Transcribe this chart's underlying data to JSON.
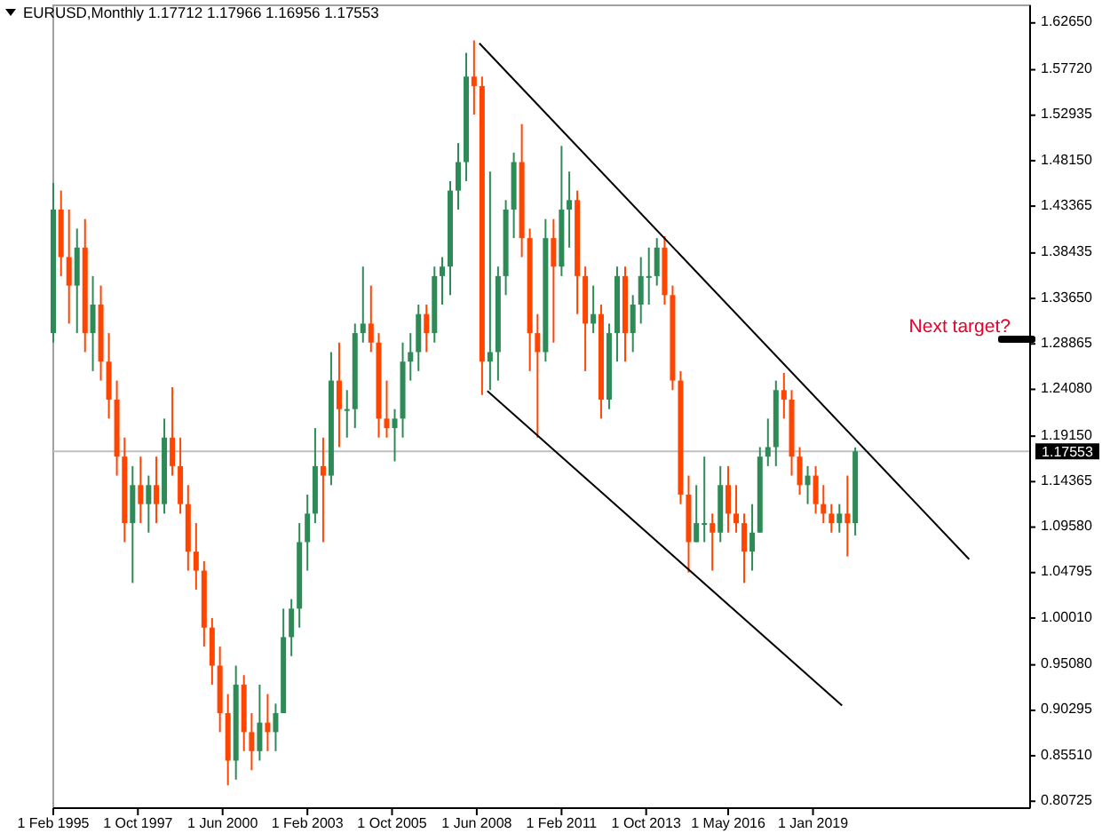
{
  "chart_data": {
    "type": "candlestick",
    "title": "EURUSD,Monthly  1.17712 1.17966 1.16956 1.17553",
    "x": [
      "1995-02",
      "1995-05",
      "1995-08",
      "1995-11",
      "1996-02",
      "1996-05",
      "1996-08",
      "1996-11",
      "1997-02",
      "1997-05",
      "1997-08",
      "1997-11",
      "1998-02",
      "1998-05",
      "1998-08",
      "1998-11",
      "1999-02",
      "1999-05",
      "1999-08",
      "1999-11",
      "2000-02",
      "2000-05",
      "2000-08",
      "2000-11",
      "2001-02",
      "2001-05",
      "2001-08",
      "2001-11",
      "2002-02",
      "2002-05",
      "2002-08",
      "2002-11",
      "2003-02",
      "2003-05",
      "2003-08",
      "2003-11",
      "2004-02",
      "2004-05",
      "2004-08",
      "2004-11",
      "2005-02",
      "2005-05",
      "2005-08",
      "2005-11",
      "2006-02",
      "2006-05",
      "2006-08",
      "2006-11",
      "2007-02",
      "2007-05",
      "2007-08",
      "2007-11",
      "2008-02",
      "2008-05",
      "2008-08",
      "2008-11",
      "2009-02",
      "2009-05",
      "2009-08",
      "2009-11",
      "2010-02",
      "2010-05",
      "2010-08",
      "2010-11",
      "2011-02",
      "2011-05",
      "2011-08",
      "2011-11",
      "2012-02",
      "2012-05",
      "2012-08",
      "2012-11",
      "2013-02",
      "2013-05",
      "2013-08",
      "2013-11",
      "2014-02",
      "2014-05",
      "2014-08",
      "2014-11",
      "2015-02",
      "2015-05",
      "2015-08",
      "2015-11",
      "2016-02",
      "2016-05",
      "2016-08",
      "2016-11",
      "2017-02",
      "2017-05",
      "2017-08",
      "2017-11",
      "2018-02",
      "2018-05",
      "2018-08",
      "2018-11",
      "2019-02",
      "2019-05",
      "2019-08",
      "2019-11",
      "2020-02",
      "2020-05"
    ],
    "ohlc": [
      [
        1.3,
        1.458,
        1.29,
        1.43
      ],
      [
        1.43,
        1.45,
        1.36,
        1.38
      ],
      [
        1.38,
        1.43,
        1.31,
        1.35
      ],
      [
        1.35,
        1.41,
        1.3,
        1.39
      ],
      [
        1.39,
        1.42,
        1.28,
        1.3
      ],
      [
        1.3,
        1.36,
        1.26,
        1.33
      ],
      [
        1.33,
        1.35,
        1.25,
        1.27
      ],
      [
        1.27,
        1.3,
        1.21,
        1.23
      ],
      [
        1.23,
        1.25,
        1.15,
        1.17
      ],
      [
        1.17,
        1.19,
        1.08,
        1.1
      ],
      [
        1.1,
        1.16,
        1.037,
        1.14
      ],
      [
        1.14,
        1.17,
        1.1,
        1.12
      ],
      [
        1.12,
        1.15,
        1.09,
        1.14
      ],
      [
        1.14,
        1.17,
        1.1,
        1.12
      ],
      [
        1.12,
        1.21,
        1.11,
        1.19
      ],
      [
        1.19,
        1.243,
        1.15,
        1.16
      ],
      [
        1.16,
        1.19,
        1.11,
        1.12
      ],
      [
        1.12,
        1.14,
        1.05,
        1.07
      ],
      [
        1.07,
        1.1,
        1.03,
        1.05
      ],
      [
        1.05,
        1.06,
        0.97,
        0.99
      ],
      [
        0.99,
        1.0,
        0.93,
        0.95
      ],
      [
        0.95,
        0.97,
        0.88,
        0.9
      ],
      [
        0.9,
        0.92,
        0.824,
        0.85
      ],
      [
        0.85,
        0.95,
        0.83,
        0.93
      ],
      [
        0.93,
        0.94,
        0.86,
        0.88
      ],
      [
        0.88,
        0.9,
        0.84,
        0.86
      ],
      [
        0.86,
        0.93,
        0.85,
        0.89
      ],
      [
        0.89,
        0.92,
        0.86,
        0.88
      ],
      [
        0.88,
        0.91,
        0.86,
        0.9
      ],
      [
        0.9,
        1.01,
        0.9,
        0.98
      ],
      [
        0.98,
        1.02,
        0.96,
        1.01
      ],
      [
        1.01,
        1.1,
        0.99,
        1.08
      ],
      [
        1.08,
        1.13,
        1.05,
        1.11
      ],
      [
        1.11,
        1.2,
        1.1,
        1.16
      ],
      [
        1.16,
        1.19,
        1.08,
        1.15
      ],
      [
        1.15,
        1.28,
        1.14,
        1.25
      ],
      [
        1.25,
        1.29,
        1.18,
        1.22
      ],
      [
        1.22,
        1.24,
        1.19,
        1.22
      ],
      [
        1.22,
        1.31,
        1.2,
        1.3
      ],
      [
        1.3,
        1.37,
        1.29,
        1.31
      ],
      [
        1.31,
        1.35,
        1.28,
        1.29
      ],
      [
        1.29,
        1.3,
        1.19,
        1.21
      ],
      [
        1.21,
        1.25,
        1.19,
        1.2
      ],
      [
        1.2,
        1.22,
        1.165,
        1.21
      ],
      [
        1.21,
        1.29,
        1.19,
        1.27
      ],
      [
        1.27,
        1.3,
        1.25,
        1.28
      ],
      [
        1.28,
        1.33,
        1.26,
        1.32
      ],
      [
        1.32,
        1.33,
        1.28,
        1.3
      ],
      [
        1.3,
        1.37,
        1.29,
        1.36
      ],
      [
        1.36,
        1.38,
        1.33,
        1.37
      ],
      [
        1.37,
        1.46,
        1.34,
        1.45
      ],
      [
        1.45,
        1.5,
        1.43,
        1.48
      ],
      [
        1.48,
        1.595,
        1.46,
        1.57
      ],
      [
        1.57,
        1.608,
        1.53,
        1.56
      ],
      [
        1.56,
        1.57,
        1.235,
        1.27
      ],
      [
        1.27,
        1.47,
        1.24,
        1.28
      ],
      [
        1.28,
        1.37,
        1.25,
        1.36
      ],
      [
        1.36,
        1.44,
        1.34,
        1.43
      ],
      [
        1.43,
        1.49,
        1.4,
        1.48
      ],
      [
        1.48,
        1.52,
        1.38,
        1.4
      ],
      [
        1.4,
        1.41,
        1.26,
        1.3
      ],
      [
        1.3,
        1.32,
        1.19,
        1.28
      ],
      [
        1.28,
        1.42,
        1.27,
        1.4
      ],
      [
        1.4,
        1.42,
        1.29,
        1.37
      ],
      [
        1.37,
        1.497,
        1.36,
        1.43
      ],
      [
        1.43,
        1.47,
        1.39,
        1.44
      ],
      [
        1.44,
        1.45,
        1.32,
        1.36
      ],
      [
        1.36,
        1.37,
        1.26,
        1.31
      ],
      [
        1.31,
        1.35,
        1.3,
        1.32
      ],
      [
        1.32,
        1.33,
        1.21,
        1.23
      ],
      [
        1.23,
        1.31,
        1.22,
        1.3
      ],
      [
        1.3,
        1.37,
        1.27,
        1.36
      ],
      [
        1.36,
        1.37,
        1.27,
        1.3
      ],
      [
        1.3,
        1.34,
        1.28,
        1.33
      ],
      [
        1.33,
        1.38,
        1.31,
        1.36
      ],
      [
        1.36,
        1.39,
        1.33,
        1.36
      ],
      [
        1.36,
        1.4,
        1.35,
        1.39
      ],
      [
        1.39,
        1.402,
        1.33,
        1.34
      ],
      [
        1.34,
        1.35,
        1.24,
        1.25
      ],
      [
        1.25,
        1.26,
        1.12,
        1.13
      ],
      [
        1.13,
        1.15,
        1.048,
        1.08
      ],
      [
        1.08,
        1.14,
        1.08,
        1.1
      ],
      [
        1.1,
        1.17,
        1.08,
        1.1
      ],
      [
        1.1,
        1.11,
        1.05,
        1.09
      ],
      [
        1.09,
        1.16,
        1.08,
        1.14
      ],
      [
        1.14,
        1.16,
        1.09,
        1.11
      ],
      [
        1.11,
        1.14,
        1.09,
        1.1
      ],
      [
        1.1,
        1.11,
        1.037,
        1.07
      ],
      [
        1.07,
        1.12,
        1.05,
        1.09
      ],
      [
        1.09,
        1.18,
        1.09,
        1.17
      ],
      [
        1.17,
        1.21,
        1.16,
        1.18
      ],
      [
        1.18,
        1.25,
        1.16,
        1.24
      ],
      [
        1.24,
        1.258,
        1.21,
        1.23
      ],
      [
        1.23,
        1.24,
        1.15,
        1.17
      ],
      [
        1.17,
        1.18,
        1.13,
        1.14
      ],
      [
        1.14,
        1.16,
        1.12,
        1.15
      ],
      [
        1.15,
        1.16,
        1.11,
        1.12
      ],
      [
        1.12,
        1.14,
        1.1,
        1.11
      ],
      [
        1.11,
        1.12,
        1.09,
        1.1
      ],
      [
        1.1,
        1.12,
        1.09,
        1.11
      ],
      [
        1.11,
        1.15,
        1.065,
        1.1
      ],
      [
        1.1,
        1.1797,
        1.087,
        1.1755
      ]
    ],
    "series": [
      {
        "type": "line",
        "color": "#000000",
        "x": [
          "2008-07",
          "2023-12"
        ],
        "values": [
          1.605,
          1.062
        ]
      },
      {
        "type": "line",
        "color": "#000000",
        "x": [
          "2008-10",
          "2019-12"
        ],
        "values": [
          1.239,
          0.908
        ]
      }
    ],
    "xlim": [
      "1995-02",
      "2025-11"
    ],
    "xticks": [
      {
        "value": "1995-02",
        "label": "1 Feb 1995"
      },
      {
        "value": "1997-10",
        "label": "1 Oct 1997"
      },
      {
        "value": "2000-06",
        "label": "1 Jun 2000"
      },
      {
        "value": "2003-02",
        "label": "1 Feb 2003"
      },
      {
        "value": "2005-10",
        "label": "1 Oct 2005"
      },
      {
        "value": "2008-06",
        "label": "1 Jun 2008"
      },
      {
        "value": "2011-02",
        "label": "1 Feb 2011"
      },
      {
        "value": "2013-10",
        "label": "1 Oct 2013"
      },
      {
        "value": "2016-05",
        "label": "1 May 2016"
      },
      {
        "value": "2019-01",
        "label": "1 Jan 2019"
      }
    ],
    "ylim": [
      0.8,
      1.645
    ],
    "yticks": [
      {
        "value": 0.80725,
        "label": "0.80725"
      },
      {
        "value": 0.8551,
        "label": "0.85510"
      },
      {
        "value": 0.90295,
        "label": "0.90295"
      },
      {
        "value": 0.9508,
        "label": "0.95080"
      },
      {
        "value": 1.0001,
        "label": "1.00010"
      },
      {
        "value": 1.04795,
        "label": "1.04795"
      },
      {
        "value": 1.0958,
        "label": "1.09580"
      },
      {
        "value": 1.14365,
        "label": "1.14365"
      },
      {
        "value": 1.1915,
        "label": "1.19150"
      },
      {
        "value": 1.2408,
        "label": "1.24080"
      },
      {
        "value": 1.28865,
        "label": "1.28865"
      },
      {
        "value": 1.3365,
        "label": "1.33650"
      },
      {
        "value": 1.38435,
        "label": "1.38435"
      },
      {
        "value": 1.43365,
        "label": "1.43365"
      },
      {
        "value": 1.4815,
        "label": "1.48150"
      },
      {
        "value": 1.52935,
        "label": "1.52935"
      },
      {
        "value": 1.5772,
        "label": "1.57720"
      },
      {
        "value": 1.6265,
        "label": "1.62650"
      }
    ],
    "ref_lines": [
      {
        "axis": "y",
        "value": 1.17553,
        "label": "1.17553",
        "color": "#c0c0c0"
      }
    ],
    "annotations": [
      "Next target?"
    ],
    "grid": false
  }
}
